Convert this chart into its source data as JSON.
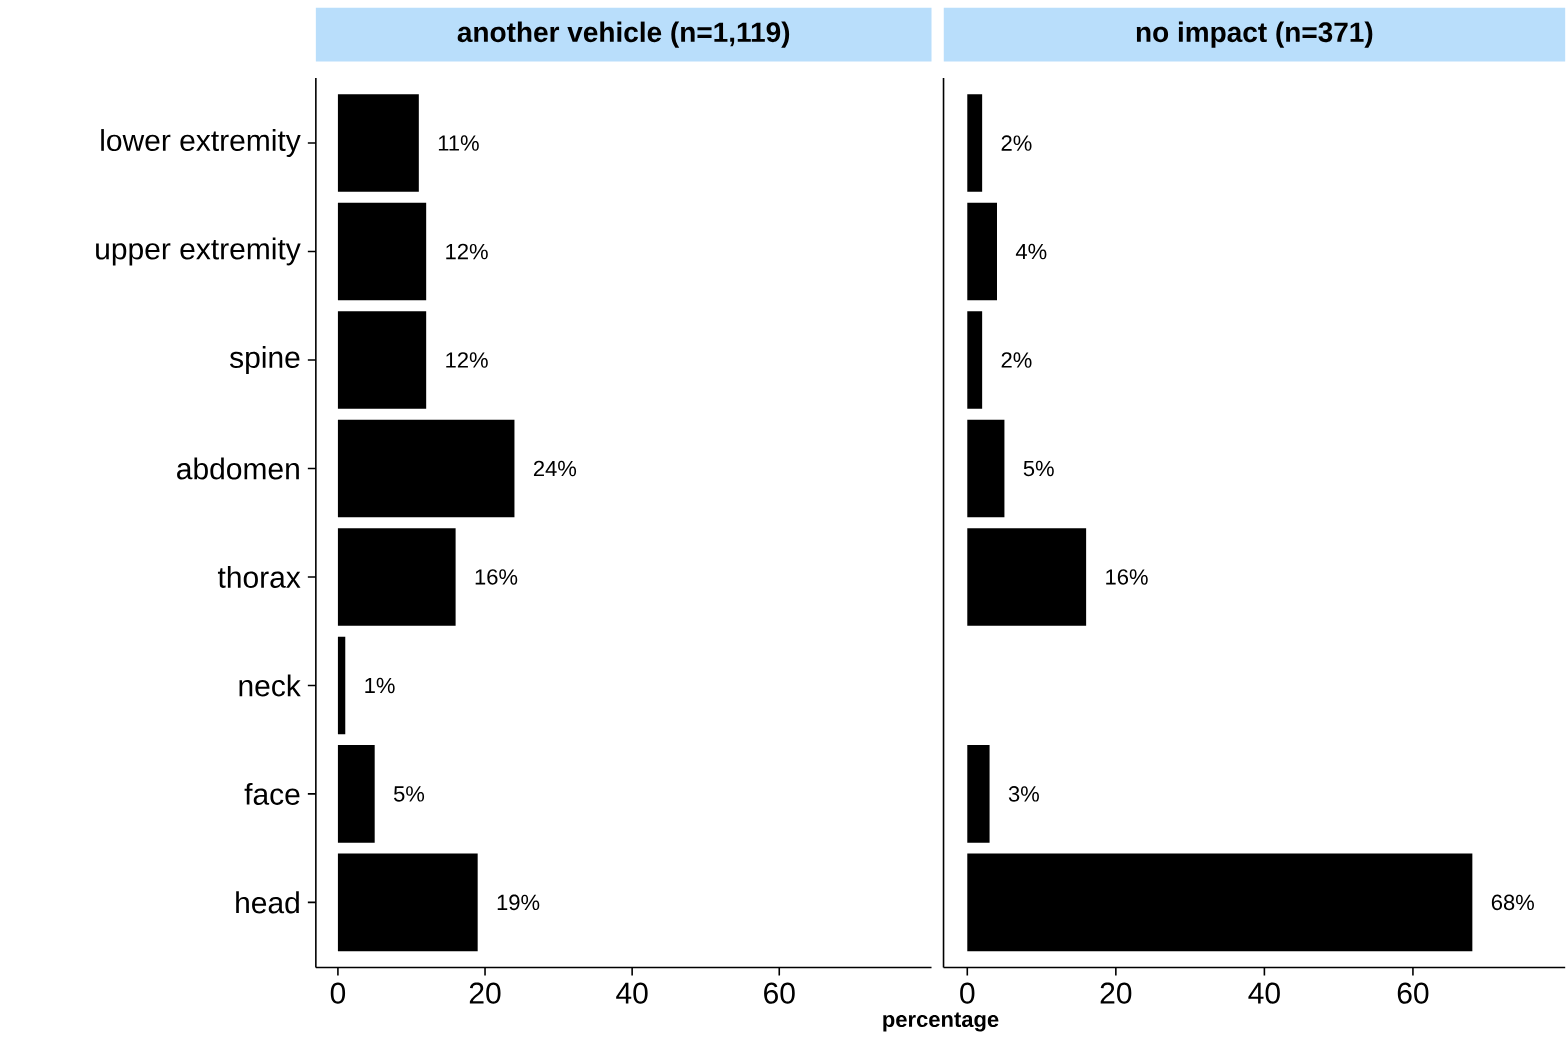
{
  "chart_data": [
    {
      "type": "bar",
      "orientation": "horizontal",
      "title": "another vehicle (n=1,119)",
      "xlabel": "percentage",
      "categories": [
        "lower extremity",
        "upper extremity",
        "spine",
        "abdomen",
        "thorax",
        "neck",
        "face",
        "head"
      ],
      "values": [
        11,
        12,
        12,
        24,
        16,
        1,
        5,
        19
      ],
      "value_labels": [
        "11%",
        "12%",
        "12%",
        "24%",
        "16%",
        "1%",
        "5%",
        "19%"
      ],
      "color": "#000000",
      "xlim": [
        -3,
        80.7
      ],
      "xticks": [
        0,
        20,
        40,
        60
      ],
      "grid": false
    },
    {
      "type": "bar",
      "orientation": "horizontal",
      "title": "no impact (n=371)",
      "tick_labels": "x",
      "categories": [
        null,
        null,
        null,
        null,
        null,
        null,
        null,
        null
      ],
      "values": [
        2,
        4,
        2,
        5,
        16,
        null,
        3,
        68
      ],
      "value_labels": [
        "2%",
        "4%",
        "2%",
        "5%",
        "16%",
        null,
        "3%",
        "68%"
      ],
      "color": "#000000",
      "xlim": [
        -3.2,
        80.5
      ],
      "xticks": [
        0,
        20,
        40,
        60
      ],
      "grid": false
    }
  ]
}
